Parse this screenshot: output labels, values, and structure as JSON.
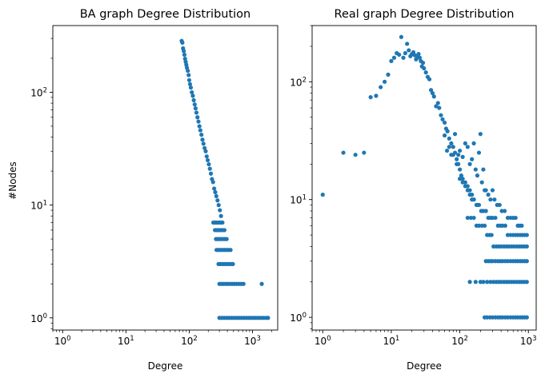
{
  "chart_data": [
    {
      "type": "scatter",
      "title": "BA graph Degree Distribution",
      "xlabel": "Degree",
      "ylabel": "#Nodes",
      "xscale": "log",
      "yscale": "log",
      "xlim": [
        0.7,
        2500
      ],
      "ylim": [
        0.78,
        390
      ],
      "xticks": [
        1,
        10,
        100,
        1000
      ],
      "xtick_labels": [
        {
          "b": "10",
          "e": "0"
        },
        {
          "b": "10",
          "e": "1"
        },
        {
          "b": "10",
          "e": "2"
        },
        {
          "b": "10",
          "e": "3"
        }
      ],
      "yticks": [
        1,
        10,
        100
      ],
      "ytick_labels": [
        {
          "b": "10",
          "e": "0"
        },
        {
          "b": "10",
          "e": "1"
        },
        {
          "b": "10",
          "e": "2"
        }
      ],
      "grid": false,
      "marker_color": "#1f77b4",
      "points": [
        [
          76,
          285
        ],
        [
          78,
          275
        ],
        [
          80,
          245
        ],
        [
          82,
          232
        ],
        [
          84,
          215
        ],
        [
          86,
          198
        ],
        [
          88,
          186
        ],
        [
          90,
          175
        ],
        [
          92,
          165
        ],
        [
          95,
          155
        ],
        [
          98,
          142
        ],
        [
          100,
          128
        ],
        [
          103,
          118
        ],
        [
          106,
          110
        ],
        [
          110,
          100
        ],
        [
          114,
          93
        ],
        [
          118,
          85
        ],
        [
          122,
          78
        ],
        [
          126,
          72
        ],
        [
          130,
          66
        ],
        [
          135,
          60
        ],
        [
          140,
          55
        ],
        [
          145,
          50
        ],
        [
          150,
          46
        ],
        [
          156,
          42
        ],
        [
          162,
          38
        ],
        [
          168,
          35
        ],
        [
          175,
          32
        ],
        [
          182,
          30
        ],
        [
          189,
          27
        ],
        [
          196,
          25
        ],
        [
          204,
          23
        ],
        [
          212,
          21
        ],
        [
          220,
          19
        ],
        [
          229,
          17
        ],
        [
          238,
          16
        ],
        [
          248,
          14
        ],
        [
          258,
          13
        ],
        [
          268,
          12
        ],
        [
          280,
          11
        ],
        [
          292,
          10
        ],
        [
          305,
          9
        ],
        [
          318,
          8
        ],
        [
          240,
          7
        ],
        [
          250,
          7
        ],
        [
          262,
          7
        ],
        [
          275,
          7
        ],
        [
          290,
          7
        ],
        [
          305,
          7
        ],
        [
          320,
          7
        ],
        [
          335,
          7
        ],
        [
          255,
          6
        ],
        [
          270,
          6
        ],
        [
          285,
          6
        ],
        [
          300,
          6
        ],
        [
          318,
          6
        ],
        [
          338,
          6
        ],
        [
          360,
          6
        ],
        [
          265,
          5
        ],
        [
          280,
          5
        ],
        [
          298,
          5
        ],
        [
          318,
          5
        ],
        [
          340,
          5
        ],
        [
          365,
          5
        ],
        [
          390,
          5
        ],
        [
          270,
          4
        ],
        [
          290,
          4
        ],
        [
          312,
          4
        ],
        [
          335,
          4
        ],
        [
          360,
          4
        ],
        [
          388,
          4
        ],
        [
          418,
          4
        ],
        [
          450,
          4
        ],
        [
          290,
          3
        ],
        [
          310,
          3
        ],
        [
          335,
          3
        ],
        [
          360,
          3
        ],
        [
          390,
          3
        ],
        [
          420,
          3
        ],
        [
          455,
          3
        ],
        [
          490,
          3
        ],
        [
          300,
          2
        ],
        [
          325,
          2
        ],
        [
          350,
          2
        ],
        [
          380,
          2
        ],
        [
          410,
          2
        ],
        [
          445,
          2
        ],
        [
          480,
          2
        ],
        [
          520,
          2
        ],
        [
          560,
          2
        ],
        [
          610,
          2
        ],
        [
          660,
          2
        ],
        [
          720,
          2
        ],
        [
          1400,
          2
        ],
        [
          300,
          1
        ],
        [
          330,
          1
        ],
        [
          360,
          1
        ],
        [
          395,
          1
        ],
        [
          430,
          1
        ],
        [
          470,
          1
        ],
        [
          515,
          1
        ],
        [
          560,
          1
        ],
        [
          610,
          1
        ],
        [
          670,
          1
        ],
        [
          730,
          1
        ],
        [
          800,
          1
        ],
        [
          870,
          1
        ],
        [
          950,
          1
        ],
        [
          1040,
          1
        ],
        [
          1130,
          1
        ],
        [
          1240,
          1
        ],
        [
          1350,
          1
        ],
        [
          1480,
          1
        ],
        [
          1620,
          1
        ],
        [
          1760,
          1
        ]
      ]
    },
    {
      "type": "scatter",
      "title": "Real graph Degree Distribution",
      "xlabel": "Degree",
      "ylabel": "",
      "xscale": "log",
      "yscale": "log",
      "xlim": [
        0.7,
        1300
      ],
      "ylim": [
        0.78,
        300
      ],
      "xticks": [
        1,
        10,
        100,
        1000
      ],
      "xtick_labels": [
        {
          "b": "10",
          "e": "0"
        },
        {
          "b": "10",
          "e": "1"
        },
        {
          "b": "10",
          "e": "2"
        },
        {
          "b": "10",
          "e": "3"
        }
      ],
      "yticks": [
        1,
        10,
        100
      ],
      "ytick_labels": [
        {
          "b": "10",
          "e": "0"
        },
        {
          "b": "10",
          "e": "1"
        },
        {
          "b": "10",
          "e": "2"
        }
      ],
      "grid": false,
      "marker_color": "#1f77b4",
      "points": [
        [
          1,
          11
        ],
        [
          2,
          25
        ],
        [
          3,
          24
        ],
        [
          4,
          25
        ],
        [
          5,
          74
        ],
        [
          6,
          76
        ],
        [
          7,
          90
        ],
        [
          8,
          100
        ],
        [
          9,
          115
        ],
        [
          10,
          150
        ],
        [
          11,
          160
        ],
        [
          12,
          175
        ],
        [
          13,
          170
        ],
        [
          14,
          240
        ],
        [
          15,
          160
        ],
        [
          16,
          175
        ],
        [
          17,
          210
        ],
        [
          18,
          185
        ],
        [
          19,
          165
        ],
        [
          20,
          172
        ],
        [
          21,
          178
        ],
        [
          22,
          168
        ],
        [
          23,
          155
        ],
        [
          24,
          165
        ],
        [
          25,
          172
        ],
        [
          26,
          160
        ],
        [
          27,
          150
        ],
        [
          28,
          135
        ],
        [
          29,
          145
        ],
        [
          30,
          130
        ],
        [
          32,
          120
        ],
        [
          34,
          110
        ],
        [
          36,
          105
        ],
        [
          38,
          85
        ],
        [
          40,
          80
        ],
        [
          42,
          75
        ],
        [
          45,
          62
        ],
        [
          48,
          66
        ],
        [
          50,
          60
        ],
        [
          53,
          52
        ],
        [
          56,
          48
        ],
        [
          60,
          45
        ],
        [
          63,
          40
        ],
        [
          66,
          38
        ],
        [
          70,
          33
        ],
        [
          75,
          30
        ],
        [
          80,
          28
        ],
        [
          85,
          25
        ],
        [
          90,
          22
        ],
        [
          95,
          20
        ],
        [
          100,
          18
        ],
        [
          105,
          16
        ],
        [
          110,
          15
        ],
        [
          120,
          14
        ],
        [
          130,
          13
        ],
        [
          140,
          12
        ],
        [
          150,
          11
        ],
        [
          160,
          10
        ],
        [
          180,
          9
        ],
        [
          60,
          35
        ],
        [
          65,
          26
        ],
        [
          70,
          28
        ],
        [
          75,
          24
        ],
        [
          80,
          24
        ],
        [
          85,
          36
        ],
        [
          90,
          20
        ],
        [
          95,
          24
        ],
        [
          100,
          26
        ],
        [
          110,
          23
        ],
        [
          120,
          30
        ],
        [
          130,
          28
        ],
        [
          140,
          20
        ],
        [
          150,
          22
        ],
        [
          160,
          30
        ],
        [
          170,
          18
        ],
        [
          180,
          16
        ],
        [
          190,
          25
        ],
        [
          200,
          36
        ],
        [
          210,
          14
        ],
        [
          220,
          18
        ],
        [
          230,
          12
        ],
        [
          240,
          12
        ],
        [
          260,
          11
        ],
        [
          280,
          10
        ],
        [
          300,
          12
        ],
        [
          320,
          10
        ],
        [
          350,
          9
        ],
        [
          380,
          9
        ],
        [
          410,
          8
        ],
        [
          450,
          8
        ],
        [
          500,
          7
        ],
        [
          550,
          7
        ],
        [
          600,
          7
        ],
        [
          650,
          7
        ],
        [
          700,
          6
        ],
        [
          750,
          6
        ],
        [
          800,
          6
        ],
        [
          100,
          15
        ],
        [
          110,
          14
        ],
        [
          120,
          13
        ],
        [
          130,
          12
        ],
        [
          140,
          11
        ],
        [
          150,
          10
        ],
        [
          160,
          10
        ],
        [
          175,
          9
        ],
        [
          190,
          9
        ],
        [
          205,
          8
        ],
        [
          220,
          8
        ],
        [
          240,
          8
        ],
        [
          260,
          7
        ],
        [
          280,
          7
        ],
        [
          300,
          7
        ],
        [
          330,
          7
        ],
        [
          360,
          6
        ],
        [
          390,
          6
        ],
        [
          420,
          6
        ],
        [
          460,
          6
        ],
        [
          500,
          5
        ],
        [
          550,
          5
        ],
        [
          600,
          5
        ],
        [
          650,
          5
        ],
        [
          700,
          5
        ],
        [
          760,
          5
        ],
        [
          820,
          5
        ],
        [
          880,
          5
        ],
        [
          950,
          5
        ],
        [
          130,
          7
        ],
        [
          145,
          7
        ],
        [
          160,
          7
        ],
        [
          175,
          6
        ],
        [
          190,
          6
        ],
        [
          210,
          6
        ],
        [
          230,
          6
        ],
        [
          250,
          5
        ],
        [
          270,
          5
        ],
        [
          290,
          5
        ],
        [
          310,
          4
        ],
        [
          340,
          4
        ],
        [
          370,
          4
        ],
        [
          400,
          4
        ],
        [
          440,
          4
        ],
        [
          480,
          4
        ],
        [
          520,
          4
        ],
        [
          570,
          4
        ],
        [
          620,
          4
        ],
        [
          680,
          4
        ],
        [
          740,
          4
        ],
        [
          800,
          4
        ],
        [
          870,
          4
        ],
        [
          950,
          4
        ],
        [
          140,
          2
        ],
        [
          170,
          2
        ],
        [
          200,
          2
        ],
        [
          220,
          2
        ],
        [
          240,
          3
        ],
        [
          260,
          3
        ],
        [
          280,
          3
        ],
        [
          300,
          3
        ],
        [
          330,
          3
        ],
        [
          360,
          3
        ],
        [
          390,
          3
        ],
        [
          420,
          3
        ],
        [
          460,
          3
        ],
        [
          500,
          3
        ],
        [
          550,
          3
        ],
        [
          600,
          3
        ],
        [
          650,
          3
        ],
        [
          700,
          3
        ],
        [
          760,
          3
        ],
        [
          820,
          3
        ],
        [
          890,
          3
        ],
        [
          950,
          3
        ],
        [
          250,
          2
        ],
        [
          280,
          2
        ],
        [
          310,
          2
        ],
        [
          340,
          2
        ],
        [
          370,
          2
        ],
        [
          400,
          2
        ],
        [
          440,
          2
        ],
        [
          480,
          2
        ],
        [
          520,
          2
        ],
        [
          570,
          2
        ],
        [
          620,
          2
        ],
        [
          680,
          2
        ],
        [
          740,
          2
        ],
        [
          800,
          2
        ],
        [
          870,
          2
        ],
        [
          950,
          2
        ],
        [
          230,
          1
        ],
        [
          250,
          1
        ],
        [
          275,
          1
        ],
        [
          300,
          1
        ],
        [
          330,
          1
        ],
        [
          360,
          1
        ],
        [
          390,
          1
        ],
        [
          420,
          1
        ],
        [
          460,
          1
        ],
        [
          500,
          1
        ],
        [
          550,
          1
        ],
        [
          600,
          1
        ],
        [
          650,
          1
        ],
        [
          700,
          1
        ],
        [
          760,
          1
        ],
        [
          820,
          1
        ],
        [
          880,
          1
        ],
        [
          950,
          1
        ]
      ]
    }
  ]
}
